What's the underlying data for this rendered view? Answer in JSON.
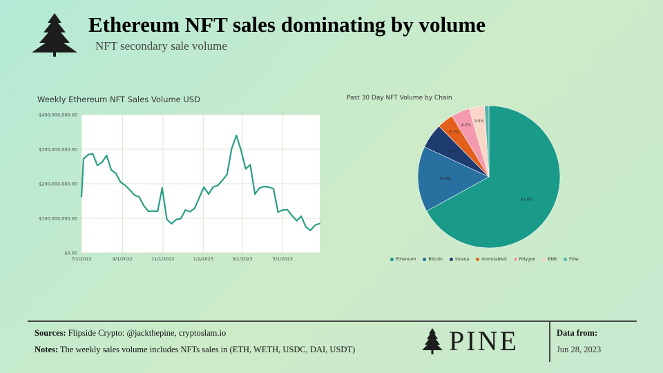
{
  "header": {
    "title": "Ethereum NFT sales dominating by volume",
    "subtitle": "NFT secondary sale volume"
  },
  "footer": {
    "sources_label": "Sources:",
    "sources_text": "Flipside Crypto: @jackthepine, cryptoslam.io",
    "notes_label": "Notes:",
    "notes_text": "The weekly sales volume includes NFTs sales in (ETH, WETH, USDC, DAI, USDT)",
    "brand": "PINE",
    "data_from_label": "Data from:",
    "data_from_date": "Jun 28, 2023"
  },
  "colors": {
    "line": "#2a9d84",
    "grid": "#d9e6d3",
    "plot_bg": "#ffffff"
  },
  "chart_data": [
    {
      "type": "line",
      "title": "Weekly Ethereum NFT Sales Volume USD",
      "xlabel": "",
      "ylabel": "",
      "ylim": [
        0,
        400000000
      ],
      "yticks": [
        {
          "value": 0,
          "label": "$0.00"
        },
        {
          "value": 100000000,
          "label": "$100,000,000.00"
        },
        {
          "value": 200000000,
          "label": "$200,000,000.00"
        },
        {
          "value": 300000000,
          "label": "$300,000,000.00"
        },
        {
          "value": 400000000,
          "label": "$400,000,000.00"
        }
      ],
      "xlim": [
        "2022-07-01",
        "2023-06-26"
      ],
      "xticks": [
        {
          "value": "2022-07-01",
          "label": "7/1/2022"
        },
        {
          "value": "2022-09-01",
          "label": "9/1/2022"
        },
        {
          "value": "2022-11-01",
          "label": "11/1/2022"
        },
        {
          "value": "2023-01-01",
          "label": "1/1/2023"
        },
        {
          "value": "2023-03-01",
          "label": "3/1/2023"
        },
        {
          "value": "2023-05-01",
          "label": "5/1/2023"
        }
      ],
      "grid": true,
      "series": [
        {
          "x": [
            "2022-07-01",
            "2022-07-04",
            "2022-07-11",
            "2022-07-18",
            "2022-07-25",
            "2022-08-01",
            "2022-08-08",
            "2022-08-15",
            "2022-08-22",
            "2022-08-29",
            "2022-09-05",
            "2022-09-12",
            "2022-09-19",
            "2022-09-26",
            "2022-10-03",
            "2022-10-10",
            "2022-10-17",
            "2022-10-24",
            "2022-10-31",
            "2022-11-07",
            "2022-11-14",
            "2022-11-21",
            "2022-11-28",
            "2022-12-05",
            "2022-12-12",
            "2022-12-19",
            "2022-12-26",
            "2023-01-02",
            "2023-01-09",
            "2023-01-16",
            "2023-01-23",
            "2023-01-30",
            "2023-02-06",
            "2023-02-13",
            "2023-02-20",
            "2023-02-27",
            "2023-03-06",
            "2023-03-13",
            "2023-03-20",
            "2023-03-27",
            "2023-04-03",
            "2023-04-10",
            "2023-04-17",
            "2023-04-24",
            "2023-05-01",
            "2023-05-08",
            "2023-05-15",
            "2023-05-22",
            "2023-05-29",
            "2023-06-05",
            "2023-06-12",
            "2023-06-19",
            "2023-06-26"
          ],
          "values": [
            162000000,
            272000000,
            284000000,
            287000000,
            253000000,
            262000000,
            282000000,
            240000000,
            230000000,
            205000000,
            195000000,
            182000000,
            167000000,
            162000000,
            137000000,
            120000000,
            121000000,
            120000000,
            188000000,
            97000000,
            84000000,
            96000000,
            99000000,
            124000000,
            119000000,
            129000000,
            160000000,
            190000000,
            170000000,
            191000000,
            195000000,
            210000000,
            227000000,
            302000000,
            340000000,
            297000000,
            243000000,
            255000000,
            170000000,
            188000000,
            192000000,
            190000000,
            186000000,
            118000000,
            124000000,
            125000000,
            108000000,
            93000000,
            106000000,
            75000000,
            65000000,
            80000000,
            85000000
          ]
        }
      ]
    },
    {
      "type": "pie",
      "title": "Past 30 Day NFT Volume by Chain",
      "legend": "bottom",
      "categories": [
        "Ethereum",
        "Bitcoin",
        "Solana",
        "ImmutableX",
        "Polygon",
        "BNB",
        "Flow"
      ],
      "values": [
        67.0,
        14.9,
        5.7,
        3.7,
        4.2,
        3.5,
        1.0
      ],
      "labels": [
        "67.0%",
        "14.9%",
        "5.7%",
        "3.7%",
        "4.2%",
        "3.5%",
        ""
      ],
      "colors": [
        "#1a9a88",
        "#27709f",
        "#1f3c70",
        "#e45f1c",
        "#f59aae",
        "#f9d6c6",
        "#4fb4a9"
      ]
    }
  ]
}
